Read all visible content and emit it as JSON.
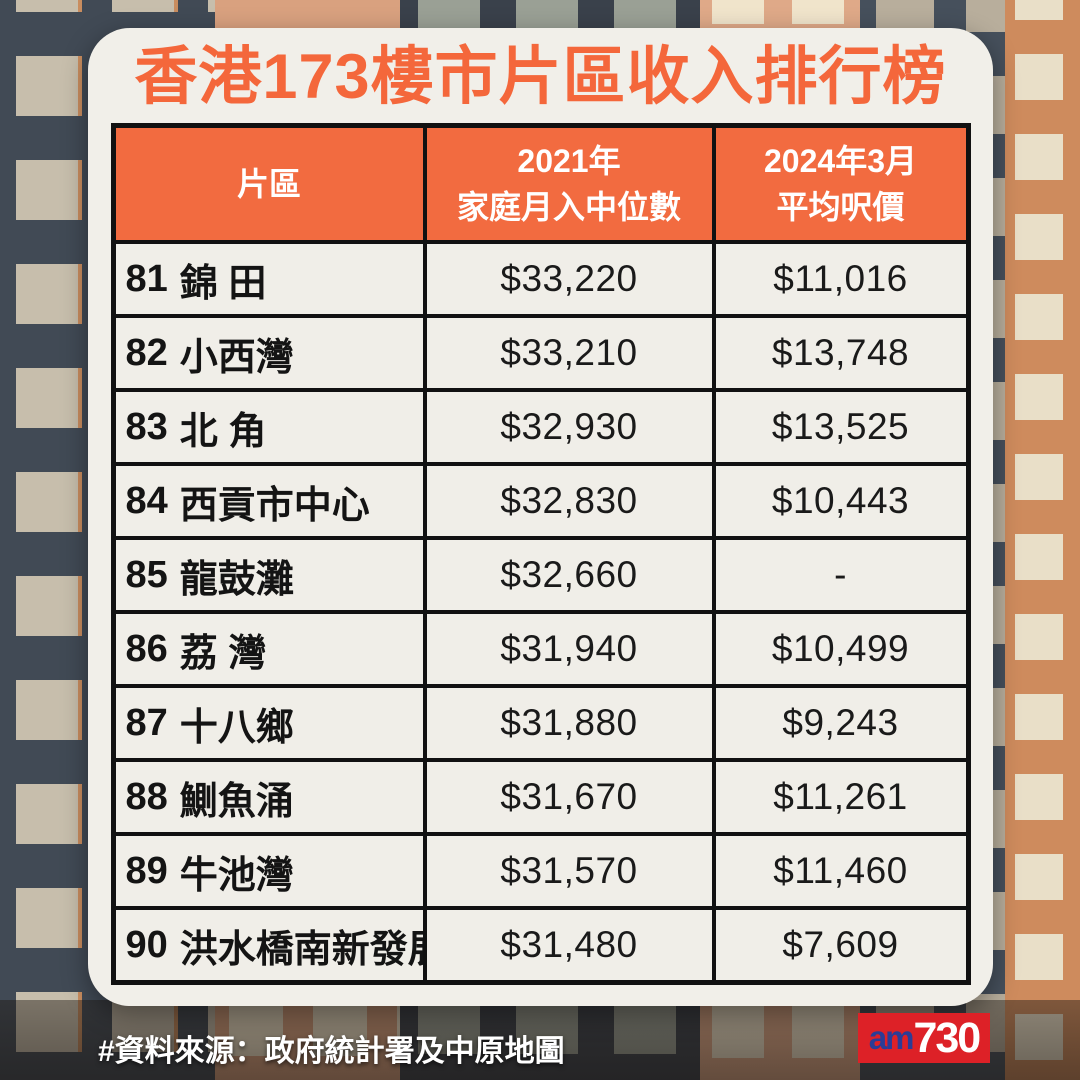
{
  "page": {
    "title": "香港173樓市片區收入排行榜",
    "source_note": "#資料來源：政府統計署及中原地圖",
    "logo": {
      "prefix": "am",
      "suffix": "730"
    }
  },
  "colors": {
    "accent_orange": "#F4673B",
    "header_orange": "#F26B40",
    "card_bg": "#F1EFE9",
    "table_border": "#111111",
    "logo_red": "#DD2127",
    "logo_blue": "#2B3C96"
  },
  "table": {
    "header": {
      "district": "片區",
      "income_line1": "2021年",
      "income_line2": "家庭月入中位數",
      "price_line1": "2024年3月",
      "price_line2": "平均呎價"
    },
    "rows": [
      {
        "rank": "81",
        "name": "錦 田",
        "income": "$33,220",
        "price": "$11,016"
      },
      {
        "rank": "82",
        "name": "小西灣",
        "income": "$33,210",
        "price": "$13,748"
      },
      {
        "rank": "83",
        "name": "北 角",
        "income": "$32,930",
        "price": "$13,525"
      },
      {
        "rank": "84",
        "name": "西貢市中心",
        "income": "$32,830",
        "price": "$10,443"
      },
      {
        "rank": "85",
        "name": "龍鼓灘",
        "income": "$32,660",
        "price": "-"
      },
      {
        "rank": "86",
        "name": "荔 灣",
        "income": "$31,940",
        "price": "$10,499"
      },
      {
        "rank": "87",
        "name": "十八鄉",
        "income": "$31,880",
        "price": "$9,243"
      },
      {
        "rank": "88",
        "name": "鰂魚涌",
        "income": "$31,670",
        "price": "$11,261"
      },
      {
        "rank": "89",
        "name": "牛池灣",
        "income": "$31,570",
        "price": "$11,460"
      },
      {
        "rank": "90",
        "name": "洪水橋南新發展",
        "income": "$31,480",
        "price": "$7,609"
      }
    ]
  },
  "chart_data": {
    "type": "table",
    "title": "香港173樓市片區收入排行榜",
    "columns": [
      "片區",
      "2021年家庭月入中位數",
      "2024年3月平均呎價"
    ],
    "rows": [
      {
        "rank": 81,
        "district": "錦田",
        "income_2021_median_monthly": 33220,
        "price_per_sqft_2024_03": 11016
      },
      {
        "rank": 82,
        "district": "小西灣",
        "income_2021_median_monthly": 33210,
        "price_per_sqft_2024_03": 13748
      },
      {
        "rank": 83,
        "district": "北角",
        "income_2021_median_monthly": 32930,
        "price_per_sqft_2024_03": 13525
      },
      {
        "rank": 84,
        "district": "西貢市中心",
        "income_2021_median_monthly": 32830,
        "price_per_sqft_2024_03": 10443
      },
      {
        "rank": 85,
        "district": "龍鼓灘",
        "income_2021_median_monthly": 32660,
        "price_per_sqft_2024_03": null
      },
      {
        "rank": 86,
        "district": "荔灣",
        "income_2021_median_monthly": 31940,
        "price_per_sqft_2024_03": 10499
      },
      {
        "rank": 87,
        "district": "十八鄉",
        "income_2021_median_monthly": 31880,
        "price_per_sqft_2024_03": 9243
      },
      {
        "rank": 88,
        "district": "鰂魚涌",
        "income_2021_median_monthly": 31670,
        "price_per_sqft_2024_03": 11261
      },
      {
        "rank": 89,
        "district": "牛池灣",
        "income_2021_median_monthly": 31570,
        "price_per_sqft_2024_03": 11460
      },
      {
        "rank": 90,
        "district": "洪水橋南新發展",
        "income_2021_median_monthly": 31480,
        "price_per_sqft_2024_03": 7609
      }
    ],
    "source": "#資料來源：政府統計署及中原地圖"
  }
}
